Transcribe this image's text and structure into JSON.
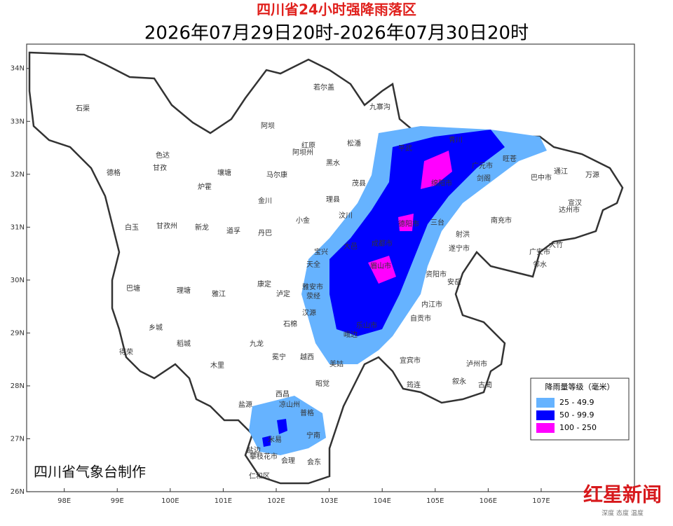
{
  "header": {
    "title": "四川省24小时强降雨落区",
    "subtitle": "2026年07月29日20时-2026年07月30日20时"
  },
  "axes": {
    "xlim": [
      97.29,
      108.76
    ],
    "ylim": [
      26,
      34.46
    ],
    "xticks": [
      {
        "value": 98,
        "label": "98E"
      },
      {
        "value": 99,
        "label": "99E"
      },
      {
        "value": 100,
        "label": "100E"
      },
      {
        "value": 101,
        "label": "101E"
      },
      {
        "value": 102,
        "label": "102E"
      },
      {
        "value": 103,
        "label": "103E"
      },
      {
        "value": 104,
        "label": "104E"
      },
      {
        "value": 105,
        "label": "105E"
      },
      {
        "value": 106,
        "label": "106E"
      },
      {
        "value": 107,
        "label": "107E"
      }
    ],
    "yticks": [
      {
        "value": 26,
        "label": "26N"
      },
      {
        "value": 27,
        "label": "27N"
      },
      {
        "value": 28,
        "label": "28N"
      },
      {
        "value": 29,
        "label": "29N"
      },
      {
        "value": 30,
        "label": "30N"
      },
      {
        "value": 31,
        "label": "31N"
      },
      {
        "value": 32,
        "label": "32N"
      },
      {
        "value": 33,
        "label": "33N"
      },
      {
        "value": 34,
        "label": "34N"
      }
    ]
  },
  "legend": {
    "title": "降雨量等级（毫米）",
    "items": [
      {
        "label": "25 - 49.9",
        "color": "#66b3ff"
      },
      {
        "label": "50 - 99.9",
        "color": "#0000ff"
      },
      {
        "label": "100 - 250",
        "color": "#ff00ff"
      }
    ]
  },
  "places": [
    "石渠",
    "阿坝",
    "若尔盖",
    "九寨沟",
    "色达",
    "德格",
    "甘孜",
    "壤塘",
    "马尔康",
    "红原",
    "阿坝州",
    "松潘",
    "黑水",
    "平武",
    "茂县",
    "理县",
    "金川",
    "炉霍",
    "新龙",
    "甘孜州",
    "白玉",
    "道孚",
    "丹巴",
    "小金",
    "汶川",
    "巴塘",
    "理塘",
    "雅江",
    "康定",
    "泸定",
    "雅安市",
    "乡城",
    "稻城",
    "九龙",
    "石棉",
    "得荣",
    "木里",
    "冕宁",
    "越西",
    "西昌",
    "凉山州",
    "盐源",
    "昭觉",
    "美姑",
    "普格",
    "宁南",
    "会东",
    "会理",
    "盐边",
    "米易",
    "攀枝花市",
    "仁和区",
    "绵阳市",
    "德阳市",
    "成都市",
    "眉山市",
    "乐山市",
    "遂宁市",
    "南充市",
    "巴中市",
    "广元市",
    "达州市",
    "广安市",
    "资阳市",
    "内江市",
    "自贡市",
    "宜宾市",
    "泸州市",
    "万源",
    "通江",
    "旺苍",
    "青川",
    "剑阁",
    "古蔺",
    "叙永",
    "筠连",
    "宣汉",
    "大竹",
    "邻水",
    "安岳",
    "射洪",
    "三台",
    "大邑",
    "宝兴",
    "天全",
    "荥经",
    "汉源",
    "峨边"
  ],
  "credit": "四川省气象台制作",
  "watermark": {
    "name": "红星新闻",
    "slogan": "深度 态度 温度"
  }
}
